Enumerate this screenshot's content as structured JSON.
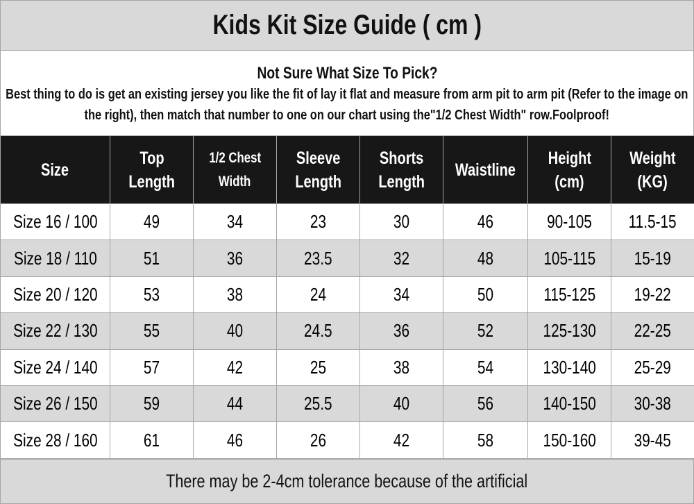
{
  "title": "Kids Kit Size Guide ( cm )",
  "intro": {
    "question": "Not Sure What Size To Pick?",
    "description": "Best thing to do is get an existing jersey you like the fit of lay it flat and measure from arm pit to arm pit (Refer to the image on the right), then match that number to one on our chart using the\"1/2 Chest Width\" row.Foolproof!"
  },
  "table": {
    "headers": [
      [
        "Size"
      ],
      [
        "Top",
        "Length"
      ],
      [
        "1/2 Chest",
        "Width"
      ],
      [
        "Sleeve",
        "Length"
      ],
      [
        "Shorts",
        "Length"
      ],
      [
        "Waistline"
      ],
      [
        "Height",
        "(cm)"
      ],
      [
        "Weight",
        "(KG)"
      ]
    ],
    "rows": [
      [
        "Size 16 / 100",
        "49",
        "34",
        "23",
        "30",
        "46",
        "90-105",
        "11.5-15"
      ],
      [
        "Size 18 / 110",
        "51",
        "36",
        "23.5",
        "32",
        "48",
        "105-115",
        "15-19"
      ],
      [
        "Size 20 / 120",
        "53",
        "38",
        "24",
        "34",
        "50",
        "115-125",
        "19-22"
      ],
      [
        "Size 22 / 130",
        "55",
        "40",
        "24.5",
        "36",
        "52",
        "125-130",
        "22-25"
      ],
      [
        "Size 24 / 140",
        "57",
        "42",
        "25",
        "38",
        "54",
        "130-140",
        "25-29"
      ],
      [
        "Size 26 / 150",
        "59",
        "44",
        "25.5",
        "40",
        "56",
        "140-150",
        "30-38"
      ],
      [
        "Size 28 / 160",
        "61",
        "46",
        "26",
        "42",
        "58",
        "150-160",
        "39-45"
      ]
    ]
  },
  "footer": "There may be 2-4cm tolerance because of the artificial",
  "colors": {
    "header_bg": "#171717",
    "band_bg": "#d9d9d9",
    "border": "#a6a6a6"
  }
}
